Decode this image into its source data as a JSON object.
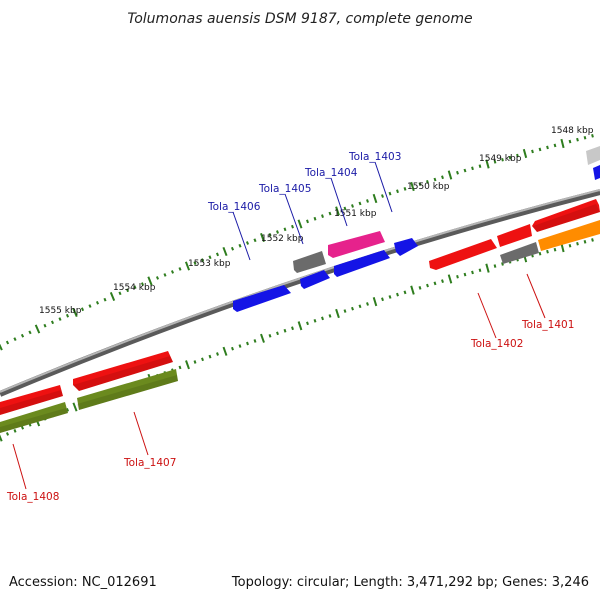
{
  "title": "Tolumonas auensis DSM 9187, complete genome",
  "footer": {
    "accession": "Accession: NC_012691",
    "stats": "Topology: circular; Length: 3,471,292 bp; Genes: 3,246"
  },
  "scale_labels": [
    "1548 kbp",
    "1549 kbp",
    "1550 kbp",
    "1551 kbp",
    "1552 kbp",
    "1553 kbp",
    "1554 kbp",
    "1555 kbp"
  ],
  "genes_top": [
    "Tola_1403",
    "Tola_1404",
    "Tola_1405",
    "Tola_1406"
  ],
  "genes_bottom": [
    "Tola_1401",
    "Tola_1402",
    "Tola_1407",
    "Tola_1408"
  ],
  "colors": {
    "backbone": "#8a8a8a",
    "tick": "#2e7d1e",
    "label_top": "#1a1aa6",
    "label_bottom": "#cc1111",
    "red": "#ee1111",
    "blue": "#1414e6",
    "magenta": "#e6228c",
    "grey": "#6b6b6b",
    "light_grey": "#c8c8c8",
    "olive": "#6b8a1e",
    "orange": "#ff8c00"
  }
}
